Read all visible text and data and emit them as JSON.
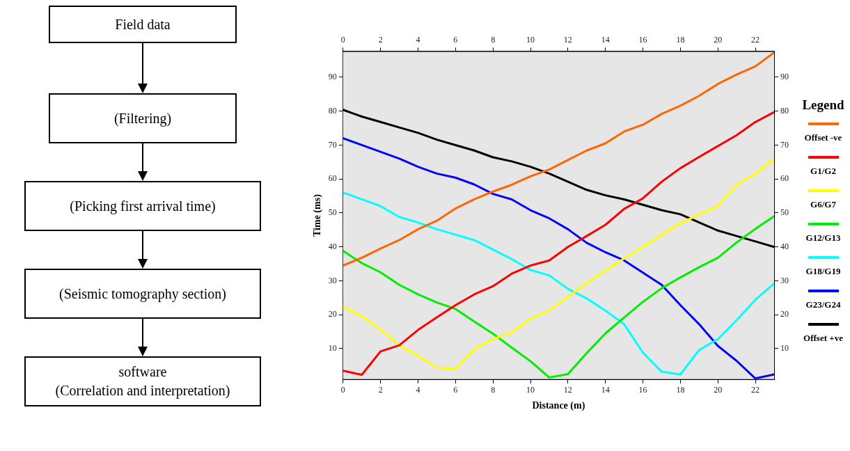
{
  "chart_data": [
    {
      "type": "other",
      "annotations": [
        "Field data",
        "(Filtering)",
        "(Picking first arrival time)",
        "(Seismic tomography section)",
        "software\n(Correlation and interpretation)"
      ]
    },
    {
      "type": "line",
      "xlabel": "Distance (m)",
      "ylabel": "Time (ms)",
      "legend_title": "Legend",
      "legend": "right",
      "marker": "none",
      "line_style": "solid",
      "x": [
        0,
        1,
        2,
        3,
        4,
        5,
        6,
        7,
        8,
        9,
        10,
        11,
        12,
        13,
        14,
        15,
        16,
        17,
        18,
        19,
        20,
        21,
        22,
        23
      ],
      "xlim": [
        0,
        23
      ],
      "xticks": [
        0,
        2,
        4,
        6,
        8,
        10,
        12,
        14,
        16,
        18,
        20,
        22
      ],
      "x2lim": [
        0,
        23
      ],
      "x2ticks": [
        0,
        2,
        4,
        6,
        8,
        10,
        12,
        14,
        16,
        18,
        20,
        22
      ],
      "ylim": [
        1,
        97.5
      ],
      "yticks": [
        10,
        20,
        30,
        40,
        50,
        60,
        70,
        80,
        90
      ],
      "y2lim": [
        1,
        97.5
      ],
      "y2ticks": [
        10,
        20,
        30,
        40,
        50,
        60,
        70,
        80,
        90
      ],
      "series": [
        {
          "name": "Offset -ve",
          "color": "#ff6600",
          "values": [
            34.5,
            36.8,
            39.5,
            42,
            45.2,
            47.7,
            51.3,
            54,
            56.3,
            58.3,
            60.8,
            62.8,
            65.6,
            68.4,
            70.5,
            74,
            76,
            79.2,
            81.6,
            84.5,
            88,
            90.8,
            93.2,
            97.3
          ]
        },
        {
          "name": "G1/G2",
          "color": "#ff0000",
          "values": [
            3.5,
            2.3,
            9.2,
            11,
            15.5,
            19.2,
            22.8,
            26,
            28.4,
            32.1,
            34.5,
            36,
            40,
            43.2,
            46.5,
            51.2,
            54.3,
            59.2,
            63.2,
            66.5,
            69.7,
            72.9,
            76.8,
            79.7
          ]
        },
        {
          "name": "G6/G7",
          "color": "#ffff00",
          "values": [
            22.3,
            19.6,
            15.6,
            11,
            7.9,
            4.4,
            4,
            9.8,
            12.8,
            14.8,
            18.8,
            21.2,
            25.3,
            29.3,
            33,
            36.6,
            40,
            43.5,
            47,
            49.5,
            52,
            58.3,
            61.5,
            66
          ]
        },
        {
          "name": "G12/G13",
          "color": "#00ee00",
          "values": [
            38.8,
            35.2,
            32.5,
            28.8,
            26,
            23.6,
            21.7,
            18,
            14.4,
            10.3,
            6.3,
            1.5,
            2.5,
            8.7,
            14.5,
            19.2,
            23.8,
            27.8,
            31,
            34,
            36.8,
            41.3,
            45.3,
            49
          ]
        },
        {
          "name": "G18/G19",
          "color": "#00ffff",
          "values": [
            56,
            54,
            52,
            48.8,
            47.2,
            45.2,
            43.6,
            42,
            39.2,
            36.4,
            33.2,
            31.6,
            27.6,
            24.8,
            21.2,
            17.2,
            8.8,
            3.2,
            2.4,
            9.6,
            12.8,
            18.4,
            24.4,
            29.2
          ]
        },
        {
          "name": "G23/G24",
          "color": "#0000ff",
          "values": [
            72,
            70,
            68,
            66,
            63.6,
            61.6,
            60.4,
            58.4,
            55.6,
            54,
            50.8,
            48.4,
            45.2,
            41.2,
            38.4,
            36,
            32.4,
            28.8,
            22.8,
            17.2,
            10.8,
            6.4,
            1.2,
            2.4
          ]
        },
        {
          "name": "Offset +ve",
          "color": "#000000",
          "values": [
            80.4,
            78.4,
            76.8,
            75.2,
            73.6,
            71.6,
            70,
            68.4,
            66.4,
            65.2,
            63.6,
            61.6,
            59.2,
            56.8,
            55.2,
            54,
            52.4,
            50.8,
            49.6,
            47.2,
            44.8,
            43.2,
            41.6,
            40
          ]
        }
      ]
    }
  ]
}
